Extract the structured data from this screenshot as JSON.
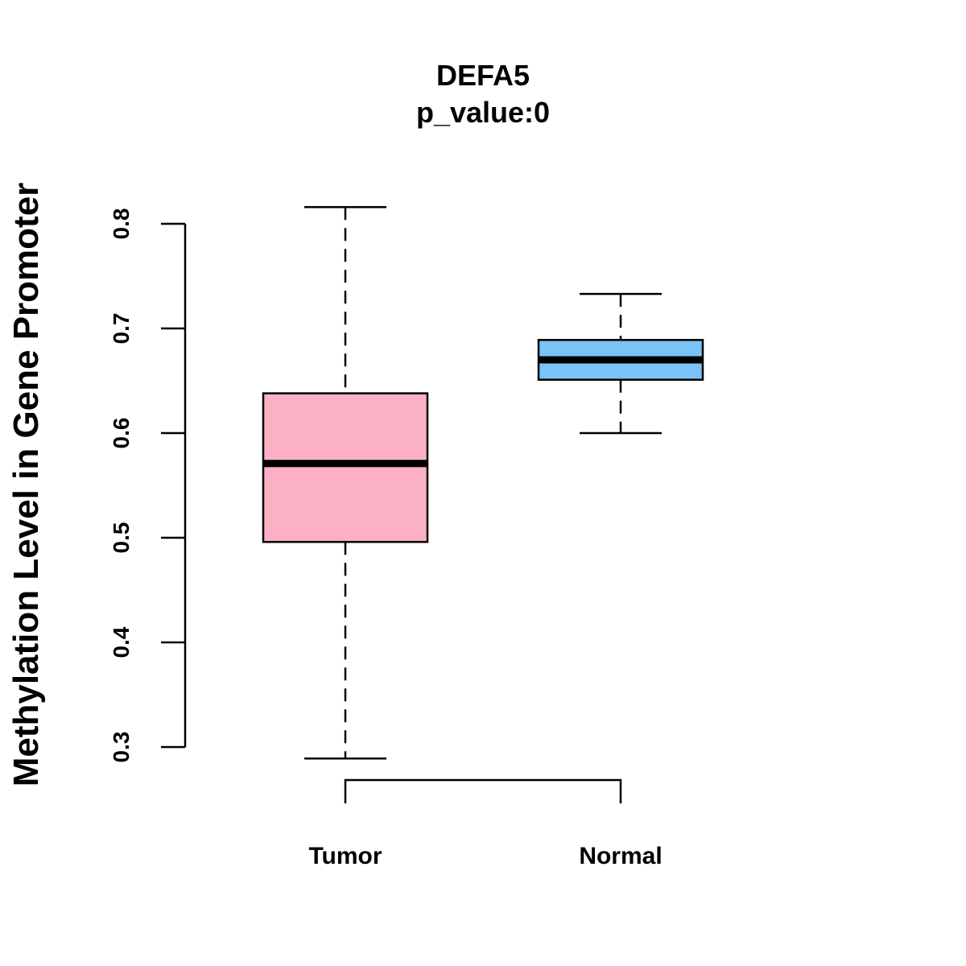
{
  "chart_data": {
    "type": "boxplot",
    "title": "DEFA5",
    "subtitle": "p_value:0",
    "xlabel": "",
    "ylabel": "Methylation Level in Gene Promoter",
    "ylim": [
      0.3,
      0.8
    ],
    "yticks": [
      0.3,
      0.4,
      0.5,
      0.6,
      0.7,
      0.8
    ],
    "ytick_labels": [
      "0.3",
      "0.4",
      "0.5",
      "0.6",
      "0.7",
      "0.8"
    ],
    "categories": [
      "Tumor",
      "Normal"
    ],
    "series": [
      {
        "name": "Tumor",
        "min": 0.289,
        "q1": 0.496,
        "median": 0.571,
        "q3": 0.638,
        "max": 0.816,
        "color": "#FBB1C3"
      },
      {
        "name": "Normal",
        "min": 0.6,
        "q1": 0.651,
        "median": 0.67,
        "q3": 0.689,
        "max": 0.733,
        "color": "#7BC3F7"
      }
    ],
    "bracket": {
      "from": "Tumor",
      "to": "Normal"
    },
    "grid": false
  }
}
